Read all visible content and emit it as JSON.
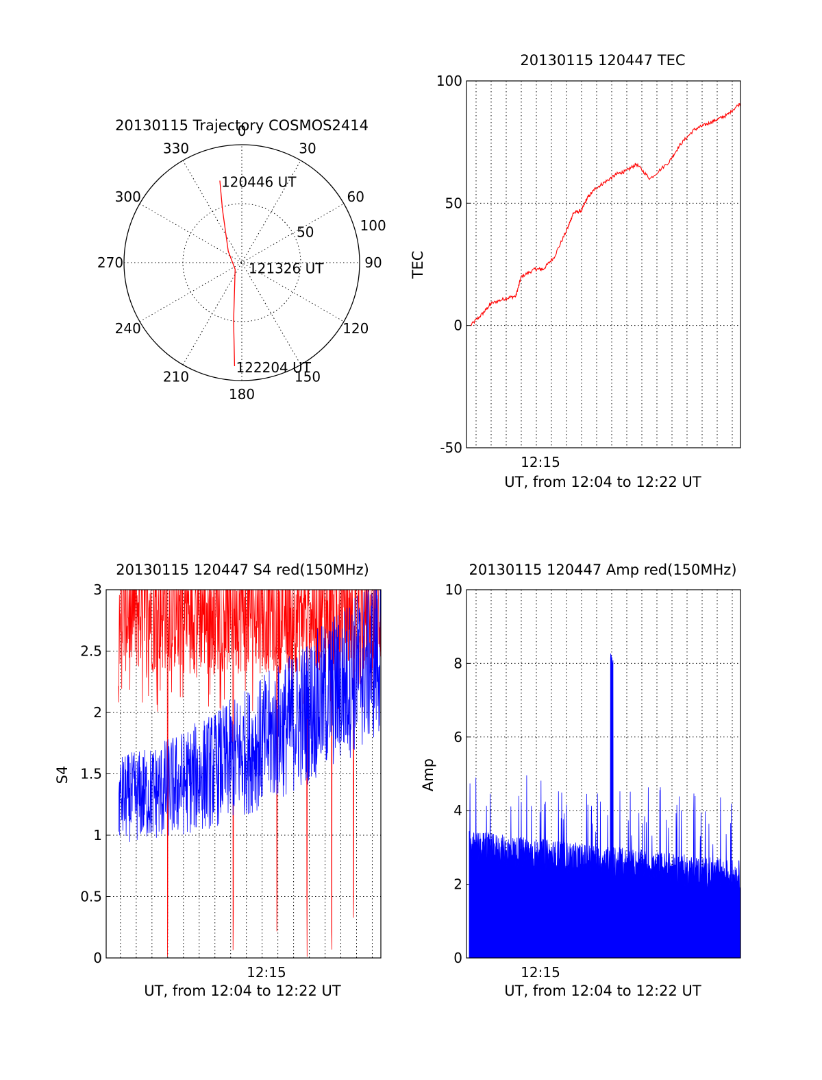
{
  "colors": {
    "red_series": "#ff0000",
    "blue_series": "#0000ff",
    "axes": "#000000",
    "background": "#ffffff"
  },
  "chart_data": [
    {
      "type": "polar",
      "title": "20130115 Trajectory COSMOS2414",
      "azimuth_labels": [
        "0",
        "30",
        "60",
        "90",
        "120",
        "150",
        "180",
        "210",
        "240",
        "270",
        "300",
        "330"
      ],
      "radial_labels": [
        "50",
        "100"
      ],
      "rlim": [
        0,
        100
      ],
      "grid": true,
      "series": [
        {
          "color": "red",
          "points": [
            {
              "az": 345,
              "r": 72
            },
            {
              "az": 340,
              "r": 48
            },
            {
              "az": 310,
              "r": 15
            },
            {
              "az": 225,
              "r": 8
            },
            {
              "az": 188,
              "r": 50
            },
            {
              "az": 184,
              "r": 88
            }
          ]
        }
      ],
      "annotations": [
        {
          "text": "120446 UT",
          "az": 345,
          "r": 72
        },
        {
          "text": "121326 UT",
          "az": 130,
          "r": 6
        },
        {
          "text": "122204 UT",
          "az": 184,
          "r": 88
        }
      ]
    },
    {
      "type": "line",
      "title": "20130115 120447 TEC",
      "xlabel": "UT, from 12:04 to 12:22 UT",
      "ylabel": "TEC",
      "xlim_minutes": [
        12.3,
        22.3
      ],
      "x_tick": {
        "label": "12:15",
        "minute": 15
      },
      "ylim": [
        -50,
        100
      ],
      "yticks": [
        "-50",
        "0",
        "50",
        "100"
      ],
      "grid": true,
      "series": [
        {
          "color": "red",
          "x_minutes": [
            12.45,
            12.9,
            13.2,
            13.7,
            14.1,
            14.3,
            14.8,
            15.1,
            15.5,
            16.0,
            16.2,
            16.5,
            16.7,
            17.0,
            17.4,
            17.8,
            18.1,
            18.5,
            19.0,
            19.7,
            20.1,
            20.6,
            21.0,
            21.4,
            21.8,
            22.3
          ],
          "y": [
            0,
            5,
            9,
            11,
            12,
            20,
            23,
            23,
            28,
            40,
            46,
            47,
            52,
            56,
            59,
            62,
            63,
            66,
            60,
            67,
            74,
            80,
            82,
            84,
            86,
            91
          ]
        }
      ]
    },
    {
      "type": "line",
      "title": "20130115 120447 S4 red(150MHz)",
      "xlabel": "UT, from 12:04 to 12:22 UT",
      "ylabel": "S4",
      "ylim": [
        0,
        3
      ],
      "yticks": [
        "0",
        "0.5",
        "1",
        "1.5",
        "2",
        "2.5",
        "3"
      ],
      "xlim_minutes": [
        9.4,
        19.0
      ],
      "x_tick": {
        "label": "12:15",
        "minute": 15
      },
      "grid": true,
      "series": [
        {
          "color": "red",
          "description_levels": {
            "start_min": 9.4,
            "end_min": 19.0,
            "typical": 2.7,
            "spread": 0.5
          }
        },
        {
          "color": "blue",
          "description_levels": {
            "start_min": 9.4,
            "end_min": 19.0,
            "typical_start": 1.3,
            "typical_end": 2.5,
            "spread": 0.35
          }
        }
      ],
      "red_dropouts_minutes": [
        11.2,
        13.6,
        15.2,
        16.3,
        17.2,
        18.0
      ]
    },
    {
      "type": "bar",
      "title": "20130115 120447 Amp red(150MHz)",
      "xlabel": "UT, from 12:04 to 12:22 UT",
      "ylabel": "Amp",
      "ylim": [
        0,
        10
      ],
      "yticks": [
        "0",
        "2",
        "4",
        "6",
        "8",
        "10"
      ],
      "xlim_minutes": [
        12.3,
        22.3
      ],
      "x_tick": {
        "label": "12:15",
        "minute": 15
      },
      "grid": true,
      "series": [
        {
          "color": "blue",
          "envelope": {
            "start_min": 12.4,
            "end_min": 22.3,
            "level_start": 3.0,
            "level_end": 2.2
          },
          "spike": {
            "minute": 17.6,
            "value": 8.4
          }
        }
      ]
    }
  ]
}
